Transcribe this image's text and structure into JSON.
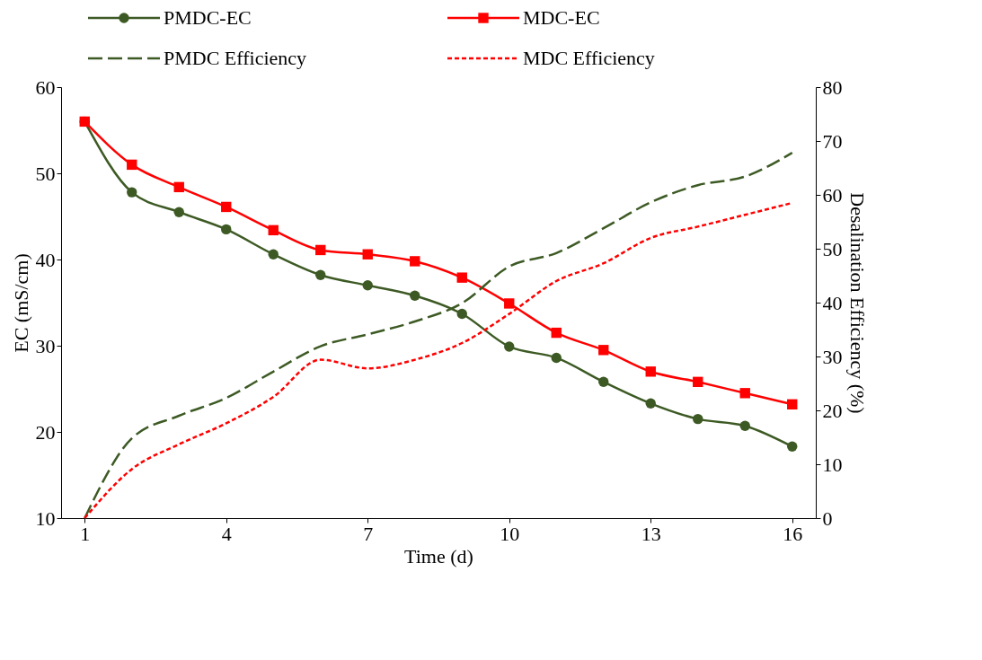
{
  "chart_data": {
    "type": "line",
    "xlabel": "Time (d)",
    "ylabel": "EC (mS/cm)",
    "y2label": "Desalination Efficiency (%)",
    "x": [
      1,
      2,
      3,
      4,
      5,
      6,
      7,
      8,
      9,
      10,
      11,
      12,
      13,
      14,
      15,
      16
    ],
    "xlim": [
      0.5,
      16.5
    ],
    "xticks": [
      1,
      4,
      7,
      10,
      13,
      16
    ],
    "ylim": [
      10,
      60
    ],
    "yticks": [
      10,
      20,
      30,
      40,
      50,
      60
    ],
    "y2lim": [
      0,
      80
    ],
    "y2ticks": [
      0,
      10,
      20,
      30,
      40,
      50,
      60,
      70,
      80
    ],
    "grid": false,
    "legend": "top",
    "series": [
      {
        "name": "PMDC-EC",
        "color": "#3d5a24",
        "axis": "y",
        "marker": "circle",
        "line_style": "solid",
        "values": [
          56.0,
          47.8,
          45.5,
          43.5,
          40.6,
          38.2,
          37.0,
          35.8,
          33.7,
          29.9,
          28.6,
          25.8,
          23.3,
          21.5,
          20.7,
          18.3
        ]
      },
      {
        "name": "MDC-EC",
        "color": "#ff0000",
        "axis": "y",
        "marker": "square",
        "line_style": "solid",
        "values": [
          56.0,
          51.0,
          48.4,
          46.1,
          43.4,
          41.1,
          40.6,
          39.8,
          37.9,
          34.9,
          31.5,
          29.5,
          27.0,
          25.8,
          24.5,
          23.2
        ]
      },
      {
        "name": "PMDC Efficiency",
        "color": "#3d5a24",
        "axis": "y2",
        "marker": "none",
        "line_style": "dashed",
        "values": [
          0,
          14.8,
          19.0,
          22.3,
          27.2,
          31.9,
          34.1,
          36.5,
          39.9,
          46.7,
          49.2,
          53.8,
          58.6,
          61.8,
          63.4,
          67.8
        ]
      },
      {
        "name": "MDC Efficiency",
        "color": "#ff0000",
        "axis": "y2",
        "marker": "none",
        "line_style": "dotted",
        "values": [
          0,
          9.1,
          13.7,
          17.6,
          22.5,
          29.4,
          27.8,
          29.4,
          32.5,
          37.9,
          44.0,
          47.3,
          52.0,
          54.1,
          56.3,
          58.5
        ]
      }
    ]
  }
}
